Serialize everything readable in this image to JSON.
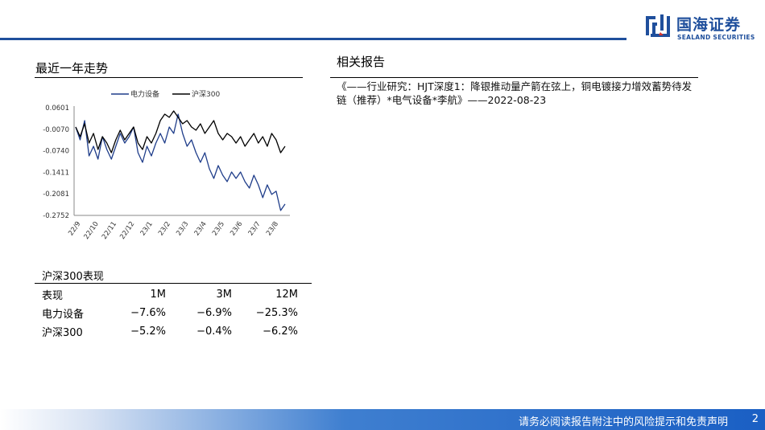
{
  "header": {
    "logo_cn": "国海证券",
    "logo_en": "SEALAND SECURITIES",
    "brand_color": "#1f4f9c"
  },
  "left_panel": {
    "title": "最近一年走势"
  },
  "right_panel": {
    "title": "相关报告",
    "reports": [
      "《——行业研究：HJT深度1：降银推动量产箭在弦上，铜电镀接力增效蓄势待发链（推荐）*电气设备*李航》——2022-08-23"
    ]
  },
  "chart_data": {
    "type": "line",
    "y_tick_labels": [
      "0.0601",
      "-0.0070",
      "-0.0740",
      "-0.1411",
      "-0.2081",
      "-0.2752"
    ],
    "ylim": [
      -0.2752,
      0.0601
    ],
    "x_tick_labels": [
      "22/9",
      "22/10",
      "22/11",
      "22/12",
      "23/1",
      "23/2",
      "23/3",
      "23/4",
      "23/5",
      "23/6",
      "23/7",
      "23/8"
    ],
    "legend_position": "top",
    "series": [
      {
        "name": "电力设备",
        "color": "#1f3d8a",
        "values": [
          0.0,
          -0.04,
          0.02,
          -0.09,
          -0.06,
          -0.1,
          -0.03,
          -0.07,
          -0.1,
          -0.06,
          -0.02,
          -0.05,
          -0.03,
          0.0,
          -0.08,
          -0.11,
          -0.06,
          -0.09,
          -0.05,
          -0.02,
          -0.05,
          0.0,
          -0.02,
          0.04,
          -0.02,
          -0.06,
          -0.04,
          -0.08,
          -0.11,
          -0.08,
          -0.13,
          -0.16,
          -0.12,
          -0.15,
          -0.17,
          -0.14,
          -0.16,
          -0.14,
          -0.17,
          -0.19,
          -0.15,
          -0.18,
          -0.22,
          -0.18,
          -0.21,
          -0.2,
          -0.26,
          -0.24
        ]
      },
      {
        "name": "沪深300",
        "color": "#000000",
        "values": [
          0.0,
          -0.03,
          0.01,
          -0.05,
          -0.02,
          -0.07,
          -0.03,
          -0.05,
          -0.08,
          -0.04,
          -0.01,
          -0.04,
          -0.02,
          0.0,
          -0.05,
          -0.07,
          -0.03,
          -0.05,
          -0.02,
          0.02,
          0.04,
          0.03,
          0.05,
          0.03,
          0.01,
          0.02,
          0.0,
          -0.01,
          0.01,
          -0.02,
          0.0,
          0.02,
          -0.02,
          -0.04,
          -0.02,
          -0.03,
          -0.05,
          -0.03,
          -0.06,
          -0.04,
          -0.02,
          -0.05,
          -0.03,
          -0.06,
          -0.02,
          -0.04,
          -0.08,
          -0.06
        ]
      }
    ]
  },
  "performance_table": {
    "title": "沪深300表现",
    "headers": [
      "表现",
      "1M",
      "3M",
      "12M"
    ],
    "rows": [
      [
        "电力设备",
        "−7.6%",
        "−6.9%",
        "−25.3%"
      ],
      [
        "沪深300",
        "−5.2%",
        "−0.4%",
        "−6.2%"
      ]
    ]
  },
  "footer": {
    "disclaimer": "请务必阅读报告附注中的风险提示和免责声明",
    "page_number": "2"
  }
}
